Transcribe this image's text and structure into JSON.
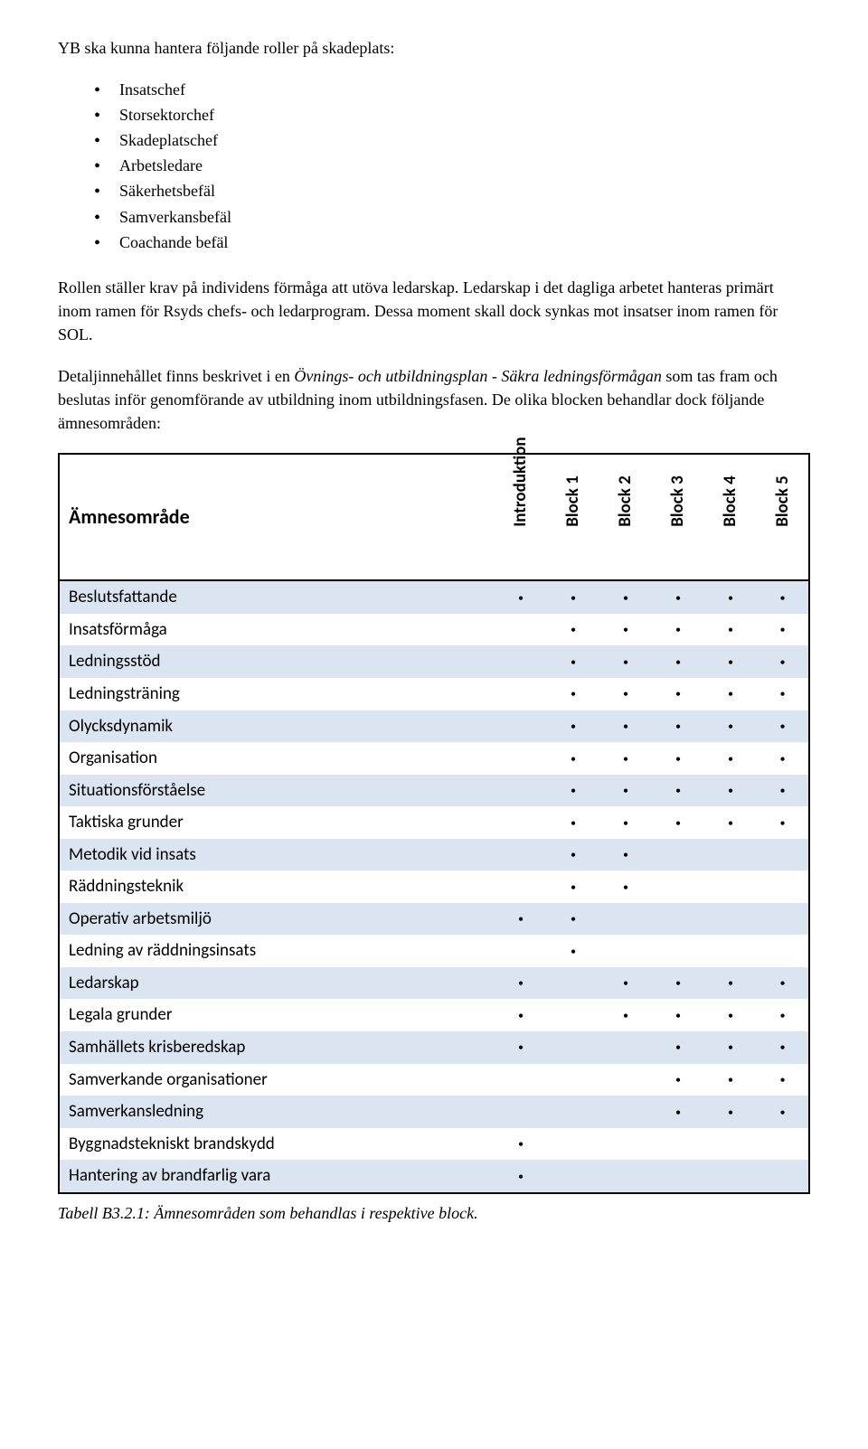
{
  "intro": "YB ska kunna hantera följande roller på skadeplats:",
  "bullets": [
    "Insatschef",
    "Storsektorchef",
    "Skadeplatschef",
    "Arbetsledare",
    "Säkerhetsbefäl",
    "Samverkansbefäl",
    "Coachande befäl"
  ],
  "para1": "Rollen ställer krav på individens förmåga att utöva ledarskap. Ledarskap i det dagliga arbetet hanteras primärt inom ramen för Rsyds chefs- och ledarprogram. Dessa moment skall dock synkas mot insatser inom ramen för SOL.",
  "para2_pre": "Detaljinnehållet finns beskrivet i en ",
  "para2_italic": "Övnings- och utbildningsplan - Säkra ledningsförmågan",
  "para2_post": "  som tas fram och beslutas inför genomförande av utbildning inom utbildningsfasen. De olika blocken behandlar dock följande ämnesområden:",
  "table": {
    "topic_header": "Ämnesområde",
    "columns": [
      "Introduktion",
      "Block 1",
      "Block 2",
      "Block 3",
      "Block 4",
      "Block 5"
    ],
    "dot": "•",
    "rows": [
      {
        "label": "Beslutsfattande",
        "dots": [
          true,
          true,
          true,
          true,
          true,
          true
        ],
        "shade": true
      },
      {
        "label": "Insatsförmåga",
        "dots": [
          false,
          true,
          true,
          true,
          true,
          true
        ],
        "shade": false
      },
      {
        "label": "Ledningsstöd",
        "dots": [
          false,
          true,
          true,
          true,
          true,
          true
        ],
        "shade": true
      },
      {
        "label": "Ledningsträning",
        "dots": [
          false,
          true,
          true,
          true,
          true,
          true
        ],
        "shade": false
      },
      {
        "label": "Olycksdynamik",
        "dots": [
          false,
          true,
          true,
          true,
          true,
          true
        ],
        "shade": true
      },
      {
        "label": "Organisation",
        "dots": [
          false,
          true,
          true,
          true,
          true,
          true
        ],
        "shade": false
      },
      {
        "label": "Situationsförståelse",
        "dots": [
          false,
          true,
          true,
          true,
          true,
          true
        ],
        "shade": true
      },
      {
        "label": "Taktiska grunder",
        "dots": [
          false,
          true,
          true,
          true,
          true,
          true
        ],
        "shade": false
      },
      {
        "label": "Metodik vid insats",
        "dots": [
          false,
          true,
          true,
          false,
          false,
          false
        ],
        "shade": true
      },
      {
        "label": "Räddningsteknik",
        "dots": [
          false,
          true,
          true,
          false,
          false,
          false
        ],
        "shade": false
      },
      {
        "label": "Operativ arbetsmiljö",
        "dots": [
          true,
          true,
          false,
          false,
          false,
          false
        ],
        "shade": true
      },
      {
        "label": "Ledning av räddningsinsats",
        "dots": [
          false,
          true,
          false,
          false,
          false,
          false
        ],
        "shade": false
      },
      {
        "label": "Ledarskap",
        "dots": [
          true,
          false,
          true,
          true,
          true,
          true
        ],
        "shade": true
      },
      {
        "label": "Legala grunder",
        "dots": [
          true,
          false,
          true,
          true,
          true,
          true
        ],
        "shade": false
      },
      {
        "label": "Samhällets krisberedskap",
        "dots": [
          true,
          false,
          false,
          true,
          true,
          true
        ],
        "shade": true
      },
      {
        "label": "Samverkande organisationer",
        "dots": [
          false,
          false,
          false,
          true,
          true,
          true
        ],
        "shade": false
      },
      {
        "label": "Samverkansledning",
        "dots": [
          false,
          false,
          false,
          true,
          true,
          true
        ],
        "shade": true
      },
      {
        "label": "Byggnadstekniskt brandskydd",
        "dots": [
          true,
          false,
          false,
          false,
          false,
          false
        ],
        "shade": false
      },
      {
        "label": "Hantering av brandfarlig vara",
        "dots": [
          true,
          false,
          false,
          false,
          false,
          false
        ],
        "shade": true
      }
    ],
    "shade_color": "#dbe5f1"
  },
  "caption": "Tabell B3.2.1: Ämnesområden som behandlas i respektive block."
}
